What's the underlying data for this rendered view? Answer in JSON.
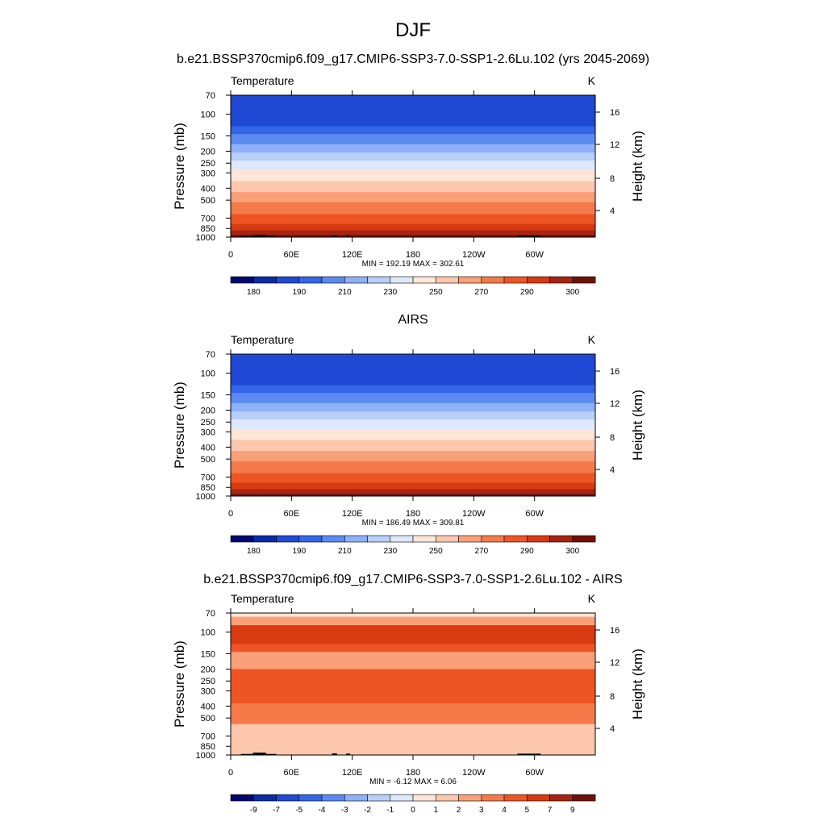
{
  "figure": {
    "title": "DJF",
    "panel1_title": "b.e21.BSSP370cmip6.f09_g17.CMIP6-SSP3-7.0-SSP1-2.6Lu.102 (yrs 2045-2069)",
    "panel2_title": "AIRS",
    "panel3_title": "b.e21.BSSP370cmip6.f09_g17.CMIP6-SSP3-7.0-SSP1-2.6Lu.102 - AIRS"
  },
  "chart_data": [
    {
      "type": "heatmap",
      "variable": "Temperature",
      "units": "K",
      "ylabel": "Pressure (mb)",
      "y2label": "Height (km)",
      "xticks": [
        "0",
        "60E",
        "120E",
        "180",
        "120W",
        "60W"
      ],
      "yticks": [
        "70",
        "100",
        "150",
        "200",
        "250",
        "300",
        "400",
        "500",
        "700",
        "850",
        "1000"
      ],
      "y2ticks": [
        "4",
        "8",
        "12",
        "16"
      ],
      "stats": "MIN = 192.19  MAX = 302.61",
      "min": 192.19,
      "max": 302.61,
      "colorbar_labels": [
        "180",
        "190",
        "210",
        "230",
        "250",
        "270",
        "290",
        "300"
      ],
      "colorbar_colors": [
        "#05096e",
        "#0a2ba6",
        "#1f49d4",
        "#3366e8",
        "#5a8af2",
        "#8eb1f8",
        "#b8cffa",
        "#dde8fc",
        "#fde6d8",
        "#fcc7ad",
        "#f9a079",
        "#f47a4a",
        "#ee5524",
        "#d83a12",
        "#a82410",
        "#701109"
      ]
    },
    {
      "type": "heatmap",
      "variable": "Temperature",
      "units": "K",
      "ylabel": "Pressure (mb)",
      "y2label": "Height (km)",
      "xticks": [
        "0",
        "60E",
        "120E",
        "180",
        "120W",
        "60W"
      ],
      "yticks": [
        "70",
        "100",
        "150",
        "200",
        "250",
        "300",
        "400",
        "500",
        "700",
        "850",
        "1000"
      ],
      "y2ticks": [
        "4",
        "8",
        "12",
        "16"
      ],
      "stats": "MIN = 186.49  MAX = 309.81",
      "min": 186.49,
      "max": 309.81,
      "colorbar_labels": [
        "180",
        "190",
        "210",
        "230",
        "250",
        "270",
        "290",
        "300"
      ],
      "colorbar_colors": [
        "#05096e",
        "#0a2ba6",
        "#1f49d4",
        "#3366e8",
        "#5a8af2",
        "#8eb1f8",
        "#b8cffa",
        "#dde8fc",
        "#fde6d8",
        "#fcc7ad",
        "#f9a079",
        "#f47a4a",
        "#ee5524",
        "#d83a12",
        "#a82410",
        "#701109"
      ]
    },
    {
      "type": "heatmap",
      "variable": "Temperature",
      "units": "K",
      "ylabel": "Pressure (mb)",
      "y2label": "Height (km)",
      "xticks": [
        "0",
        "60E",
        "120E",
        "180",
        "120W",
        "60W"
      ],
      "yticks": [
        "70",
        "100",
        "150",
        "200",
        "250",
        "300",
        "400",
        "500",
        "700",
        "850",
        "1000"
      ],
      "y2ticks": [
        "4",
        "8",
        "12",
        "16"
      ],
      "stats": "MIN =  -6.12  MAX =   6.06",
      "min": -6.12,
      "max": 6.06,
      "colorbar_labels": [
        "-9",
        "-7",
        "-5",
        "-4",
        "-3",
        "-2",
        "-1",
        "0",
        "1",
        "2",
        "3",
        "4",
        "5",
        "7",
        "9"
      ],
      "colorbar_colors": [
        "#05096e",
        "#0a2ba6",
        "#1f49d4",
        "#3366e8",
        "#5a8af2",
        "#8eb1f8",
        "#b8cffa",
        "#dde8fc",
        "#fde6d8",
        "#fcc7ad",
        "#f9a079",
        "#f47a4a",
        "#ee5524",
        "#d83a12",
        "#a82410",
        "#701109"
      ]
    }
  ]
}
